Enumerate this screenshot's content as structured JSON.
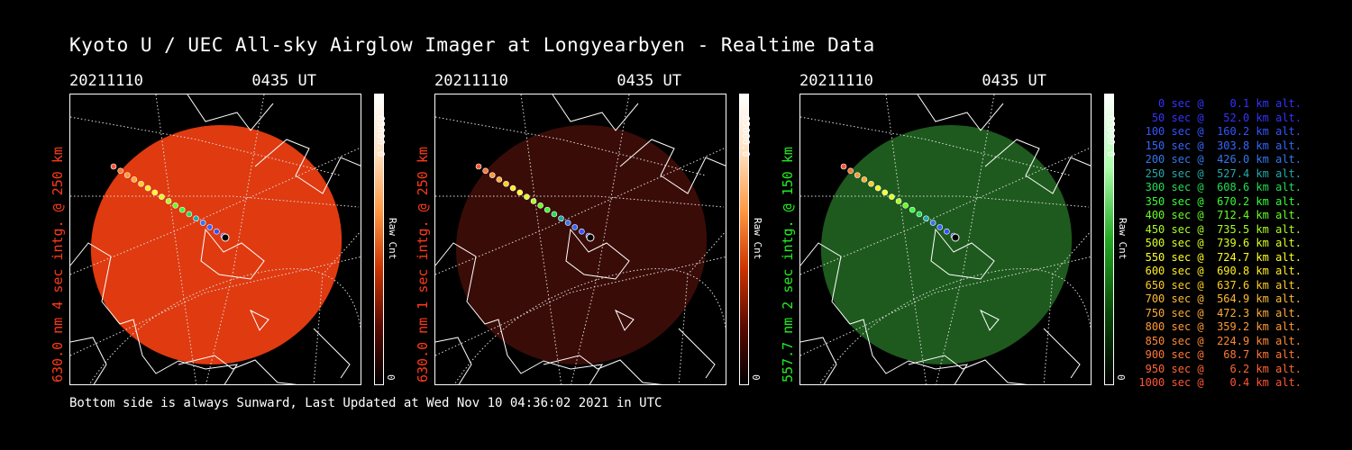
{
  "title": "Kyoto U / UEC All-sky Airglow Imager at Longyearbyen - Realtime Data",
  "panels": [
    {
      "date": "20211110",
      "time": "0435 UT",
      "ylabel": "630.0 nm 4 sec intg. @ 250 km",
      "color": "#e03a10",
      "label_color": "#ff3a1a",
      "scale_max": "65000.0",
      "scale_min": "0",
      "scale_unit": "Raw Cnt",
      "colormap": "red"
    },
    {
      "date": "20211110",
      "time": "0435 UT",
      "ylabel": "630.0 nm 1 sec intg. @ 250 km",
      "color": "#3a0c08",
      "label_color": "#ff3a1a",
      "scale_max": "65000.0",
      "scale_min": "0",
      "scale_unit": "Raw Cnt",
      "colormap": "red"
    },
    {
      "date": "20211110",
      "time": "0435 UT",
      "ylabel": "557.7 nm 2 sec intg. @ 150 km",
      "color": "#1e5a1e",
      "label_color": "#22ee22",
      "scale_max": "65000.0",
      "scale_min": "0",
      "scale_unit": "Raw Cnt",
      "colormap": "green"
    }
  ],
  "legend": [
    {
      "text": "   0 sec @    0.1 km alt.",
      "color": "#3333ff"
    },
    {
      "text": "  50 sec @   52.0 km alt.",
      "color": "#3333ff"
    },
    {
      "text": " 100 sec @  160.2 km alt.",
      "color": "#3355ff"
    },
    {
      "text": " 150 sec @  303.8 km alt.",
      "color": "#3366ff"
    },
    {
      "text": " 200 sec @  426.0 km alt.",
      "color": "#3377ee"
    },
    {
      "text": " 250 sec @  527.4 km alt.",
      "color": "#22aaaa"
    },
    {
      "text": " 300 sec @  608.6 km alt.",
      "color": "#22dd55"
    },
    {
      "text": " 350 sec @  670.2 km alt.",
      "color": "#33ff33"
    },
    {
      "text": " 400 sec @  712.4 km alt.",
      "color": "#66ff22"
    },
    {
      "text": " 450 sec @  735.5 km alt.",
      "color": "#aaff22"
    },
    {
      "text": " 500 sec @  739.6 km alt.",
      "color": "#ddff22"
    },
    {
      "text": " 550 sec @  724.7 km alt.",
      "color": "#ffff22"
    },
    {
      "text": " 600 sec @  690.8 km alt.",
      "color": "#ffee22"
    },
    {
      "text": " 650 sec @  637.6 km alt.",
      "color": "#ffcc22"
    },
    {
      "text": " 700 sec @  564.9 km alt.",
      "color": "#ffbb33"
    },
    {
      "text": " 750 sec @  472.3 km alt.",
      "color": "#ffaa33"
    },
    {
      "text": " 800 sec @  359.2 km alt.",
      "color": "#ff9933"
    },
    {
      "text": " 850 sec @  224.9 km alt.",
      "color": "#ff8833"
    },
    {
      "text": " 900 sec @   68.7 km alt.",
      "color": "#ff7733"
    },
    {
      "text": " 950 sec @    6.2 km alt.",
      "color": "#ff6633"
    },
    {
      "text": "1000 sec @    0.4 km alt.",
      "color": "#ff5533"
    }
  ],
  "footer": "Bottom side is always Sunward, Last Updated at Wed Nov 10 04:36:02 2021 in UTC"
}
